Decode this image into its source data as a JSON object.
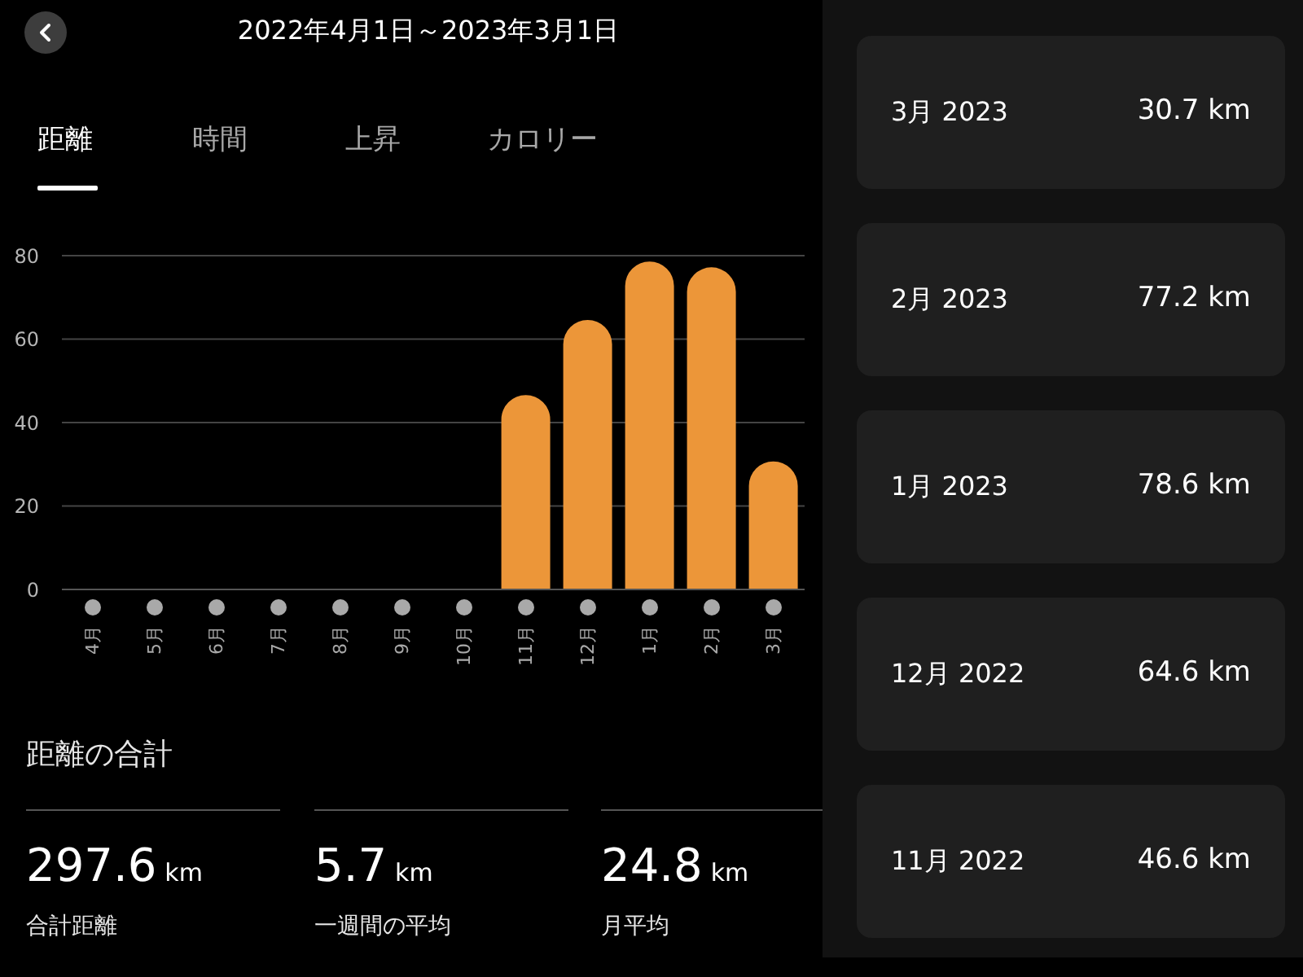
{
  "chart_data": [
    {
      "type": "bar",
      "title": "2022年4月1日～2023年3月1日",
      "annotations": [
        "距離",
        "時間",
        "上昇",
        "カロリー",
        "距離の合計",
        "297.6 km",
        "合計距離",
        "5.7 km",
        "一週間の平均",
        "24.8 km",
        "月平均"
      ],
      "categories": [
        "4月",
        "5月",
        "6月",
        "7月",
        "8月",
        "9月",
        "10月",
        "11月",
        "12月",
        "1月",
        "2月",
        "3月"
      ],
      "values": [
        0,
        0,
        0,
        0,
        0,
        0,
        0,
        46.6,
        64.6,
        78.6,
        77.2,
        30.7
      ],
      "color": "#ec9639",
      "ylim": [
        0,
        80
      ],
      "yticks": [
        0,
        20,
        40,
        60,
        80
      ],
      "grid": "y"
    },
    {
      "type": "other",
      "annotations": [
        "3月 2023",
        "30.7 km",
        "2月 2023",
        "77.2 km",
        "1月 2023",
        "78.6 km",
        "12月 2022",
        "64.6 km",
        "11月 2022",
        "46.6 km"
      ]
    }
  ]
}
